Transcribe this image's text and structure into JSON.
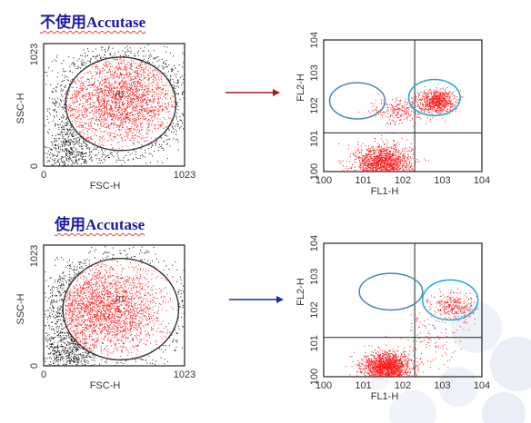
{
  "headings": {
    "top": "不使用Accutase",
    "bottom": "使用Accutase"
  },
  "colors": {
    "heading": "#1a1aa6",
    "events_gated": "#ff1a1a",
    "events_other": "#111111",
    "gate_ellipse": "#333333",
    "quadrant_gate_left": "#4a86b8",
    "quadrant_gate_right": "#1aa8d8",
    "arrow_top": "#b01818",
    "arrow_bottom": "#1b2a9e"
  },
  "chart_data": [
    {
      "type": "scatter",
      "panel": "top-left",
      "xlabel": "FSC-H",
      "ylabel": "SSC-H",
      "x_ticks": [
        "0",
        "1023"
      ],
      "y_ticks": [
        "0",
        "1023"
      ],
      "xlim": [
        0,
        1023
      ],
      "ylim": [
        0,
        1023
      ],
      "gate_label": "R1",
      "gate": {
        "shape": "ellipse",
        "center": [
          560,
          520
        ],
        "radii": [
          400,
          390
        ]
      },
      "clusters": [
        {
          "name": "gated",
          "center": [
            560,
            560
          ],
          "spread": [
            230,
            200
          ],
          "count": 2600
        },
        {
          "name": "debris",
          "center": [
            180,
            120
          ],
          "spread": [
            100,
            120
          ],
          "count": 500
        }
      ]
    },
    {
      "type": "scatter",
      "panel": "top-right",
      "xlabel": "FL1-H",
      "ylabel": "FL2-H",
      "x_ticks": [
        "100",
        "101",
        "102",
        "103",
        "104"
      ],
      "y_ticks": [
        "100",
        "101",
        "102",
        "103",
        "104"
      ],
      "scale": "log",
      "xlim": [
        1,
        10000
      ],
      "ylim": [
        1,
        10000
      ],
      "quadrant": [
        200,
        15
      ],
      "gates": [
        {
          "center_log": [
            0.85,
            2.15
          ],
          "radii_log": [
            0.7,
            0.55
          ]
        },
        {
          "center_log": [
            2.8,
            2.25
          ],
          "radii_log": [
            0.65,
            0.55
          ]
        }
      ],
      "clusters": [
        {
          "center_log": [
            1.5,
            0.25
          ],
          "spread_log": [
            0.35,
            0.28
          ],
          "count": 1500
        },
        {
          "center_log": [
            2.85,
            2.15
          ],
          "spread_log": [
            0.22,
            0.18
          ],
          "count": 700
        },
        {
          "center_log": [
            1.9,
            1.85
          ],
          "spread_log": [
            0.35,
            0.2
          ],
          "count": 250
        }
      ]
    },
    {
      "type": "scatter",
      "panel": "bottom-left",
      "xlabel": "FSC-H",
      "ylabel": "SSC-H",
      "x_ticks": [
        "0",
        "1023"
      ],
      "y_ticks": [
        "0",
        "1023"
      ],
      "xlim": [
        0,
        1023
      ],
      "ylim": [
        0,
        1023
      ],
      "gate_label": "R1",
      "gate": {
        "shape": "ellipse",
        "center": [
          560,
          480
        ],
        "radii": [
          420,
          430
        ]
      },
      "clusters": [
        {
          "name": "gated",
          "center": [
            440,
            480
          ],
          "spread": [
            220,
            190
          ],
          "count": 2600
        },
        {
          "name": "debris",
          "center": [
            160,
            100
          ],
          "spread": [
            100,
            100
          ],
          "count": 500
        }
      ]
    },
    {
      "type": "scatter",
      "panel": "bottom-right",
      "xlabel": "FL1-H",
      "ylabel": "FL2-H",
      "x_ticks": [
        "100",
        "101",
        "102",
        "103",
        "104"
      ],
      "y_ticks": [
        "100",
        "101",
        "102",
        "103",
        "104"
      ],
      "scale": "log",
      "xlim": [
        1,
        10000
      ],
      "ylim": [
        1,
        10000
      ],
      "quadrant": [
        200,
        15
      ],
      "gates": [
        {
          "center_log": [
            1.7,
            2.55
          ],
          "radii_log": [
            0.8,
            0.55
          ]
        },
        {
          "center_log": [
            3.2,
            2.3
          ],
          "radii_log": [
            0.7,
            0.6
          ]
        }
      ],
      "clusters": [
        {
          "center_log": [
            1.6,
            0.3
          ],
          "spread_log": [
            0.3,
            0.22
          ],
          "count": 1600
        },
        {
          "center_log": [
            3.3,
            2.1
          ],
          "spread_log": [
            0.3,
            0.2
          ],
          "count": 300
        },
        {
          "center_log": [
            2.7,
            1.2
          ],
          "spread_log": [
            0.4,
            0.5
          ],
          "count": 120
        }
      ]
    }
  ]
}
